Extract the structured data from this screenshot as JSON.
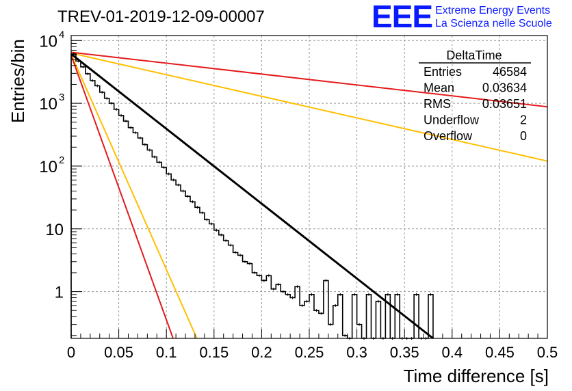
{
  "header": {
    "run_title": "TREV-01-2019-12-09-00007",
    "logo_text": "EEE",
    "logo_line1": "Extreme Energy Events",
    "logo_line2": "La Scienza nelle Scuole"
  },
  "stats_box": {
    "title": "DeltaTime",
    "rows": [
      {
        "label": "Entries",
        "value": "46584"
      },
      {
        "label": "Mean",
        "value": "0.03634"
      },
      {
        "label": "RMS",
        "value": "0.03651"
      },
      {
        "label": "Underflow",
        "value": "2"
      },
      {
        "label": "Overflow",
        "value": "0"
      }
    ]
  },
  "colors": {
    "histogram": "#000000",
    "fit": "#000000",
    "red": "#e41a1c",
    "orange": "#ffbf00",
    "grid": "#999999"
  },
  "chart_data": {
    "type": "line",
    "xlabel": "Time difference [s]",
    "ylabel": "Entries/bin",
    "xlim": [
      0,
      0.5
    ],
    "ylim": [
      0.18,
      12000
    ],
    "yscale": "log",
    "grid": true,
    "x_ticks": [
      {
        "value": 0,
        "label": "0"
      },
      {
        "value": 0.05,
        "label": "0.05"
      },
      {
        "value": 0.1,
        "label": "0.1"
      },
      {
        "value": 0.15,
        "label": "0.15"
      },
      {
        "value": 0.2,
        "label": "0.2"
      },
      {
        "value": 0.25,
        "label": "0.25"
      },
      {
        "value": 0.3,
        "label": "0.3"
      },
      {
        "value": 0.35,
        "label": "0.35"
      },
      {
        "value": 0.4,
        "label": "0.4"
      },
      {
        "value": 0.45,
        "label": "0.45"
      },
      {
        "value": 0.5,
        "label": "0.5"
      }
    ],
    "y_ticks": [
      {
        "value": 1,
        "label": "1"
      },
      {
        "value": 10,
        "label": "10"
      },
      {
        "value": 100,
        "label": "10",
        "exp": "2"
      },
      {
        "value": 1000,
        "label": "10",
        "exp": "3"
      },
      {
        "value": 10000,
        "label": "10",
        "exp": "4"
      }
    ],
    "histogram": {
      "bin_width": 0.005,
      "values": [
        6200,
        4800,
        3700,
        3000,
        2500,
        1950,
        1600,
        1250,
        1000,
        800,
        650,
        520,
        420,
        340,
        290,
        220,
        180,
        145,
        120,
        95,
        78,
        63,
        55,
        42,
        35,
        28,
        22,
        18,
        15,
        12,
        9.5,
        8,
        6.5,
        5.5,
        4.2,
        3.6,
        3.0,
        2.5,
        2.1,
        1.7,
        1.4,
        1.1,
        0.95,
        0.85,
        0.7,
        0.6,
        0.5,
        0.45,
        0.4,
        0.35,
        0.3,
        0.28,
        0.25,
        0.22,
        0.2,
        0.18,
        0.18,
        0.18,
        0.18,
        0.18
      ]
    },
    "histogram_points": [
      [
        0.0,
        6100
      ],
      [
        0.005,
        4700
      ],
      [
        0.01,
        3800
      ],
      [
        0.015,
        2950
      ],
      [
        0.02,
        2300
      ],
      [
        0.025,
        1900
      ],
      [
        0.03,
        1500
      ],
      [
        0.035,
        1200
      ],
      [
        0.04,
        1000
      ],
      [
        0.045,
        800
      ],
      [
        0.05,
        640
      ],
      [
        0.055,
        520
      ],
      [
        0.06,
        410
      ],
      [
        0.065,
        340
      ],
      [
        0.07,
        280
      ],
      [
        0.075,
        220
      ],
      [
        0.08,
        180
      ],
      [
        0.085,
        140
      ],
      [
        0.09,
        115
      ],
      [
        0.095,
        95
      ],
      [
        0.1,
        75
      ],
      [
        0.105,
        60
      ],
      [
        0.11,
        50
      ],
      [
        0.115,
        40
      ],
      [
        0.12,
        33
      ],
      [
        0.125,
        27
      ],
      [
        0.13,
        22
      ],
      [
        0.135,
        18
      ],
      [
        0.14,
        14
      ],
      [
        0.145,
        12
      ],
      [
        0.15,
        9.5
      ],
      [
        0.155,
        8
      ],
      [
        0.16,
        6.5
      ],
      [
        0.165,
        5.5
      ],
      [
        0.17,
        4.2
      ],
      [
        0.175,
        3.8
      ],
      [
        0.18,
        3.0
      ],
      [
        0.185,
        2.8
      ],
      [
        0.19,
        2.0
      ],
      [
        0.195,
        1.8
      ],
      [
        0.2,
        1.5
      ],
      [
        0.205,
        1.8
      ],
      [
        0.21,
        1.1
      ],
      [
        0.215,
        1.3
      ],
      [
        0.22,
        1.0
      ],
      [
        0.225,
        0.9
      ],
      [
        0.23,
        0.8
      ],
      [
        0.235,
        1.2
      ],
      [
        0.24,
        0.6
      ],
      [
        0.245,
        0.7
      ],
      [
        0.25,
        0.9
      ],
      [
        0.255,
        0.5
      ],
      [
        0.26,
        0.45
      ],
      [
        0.265,
        1.5
      ],
      [
        0.27,
        0.3
      ],
      [
        0.275,
        0.6
      ],
      [
        0.28,
        0.9
      ],
      [
        0.285,
        0.2
      ],
      [
        0.29,
        0.18
      ],
      [
        0.295,
        0.9
      ],
      [
        0.3,
        0.3
      ],
      [
        0.305,
        0.18
      ],
      [
        0.31,
        0.9
      ],
      [
        0.315,
        0.18
      ],
      [
        0.32,
        0.7
      ],
      [
        0.325,
        0.18
      ],
      [
        0.33,
        0.9
      ],
      [
        0.335,
        0.18
      ],
      [
        0.34,
        0.9
      ],
      [
        0.345,
        0.18
      ],
      [
        0.35,
        0.18
      ],
      [
        0.355,
        0.18
      ],
      [
        0.36,
        0.9
      ],
      [
        0.365,
        0.18
      ],
      [
        0.37,
        0.18
      ],
      [
        0.375,
        0.9
      ]
    ],
    "fit_line": {
      "x0": 0.0,
      "y0": 6100,
      "x1": 0.38,
      "y1": 0.18
    },
    "bands": [
      {
        "color": "red",
        "x0": 0.0,
        "y0": 6500,
        "x1": 0.5,
        "y1": 880
      },
      {
        "color": "orange",
        "x0": 0.0,
        "y0": 6300,
        "x1": 0.5,
        "y1": 120
      },
      {
        "color": "orange",
        "x0": 0.0,
        "y0": 6000,
        "x1": 0.132,
        "y1": 0.18
      },
      {
        "color": "red",
        "x0": 0.0,
        "y0": 5800,
        "x1": 0.107,
        "y1": 0.18
      }
    ]
  }
}
